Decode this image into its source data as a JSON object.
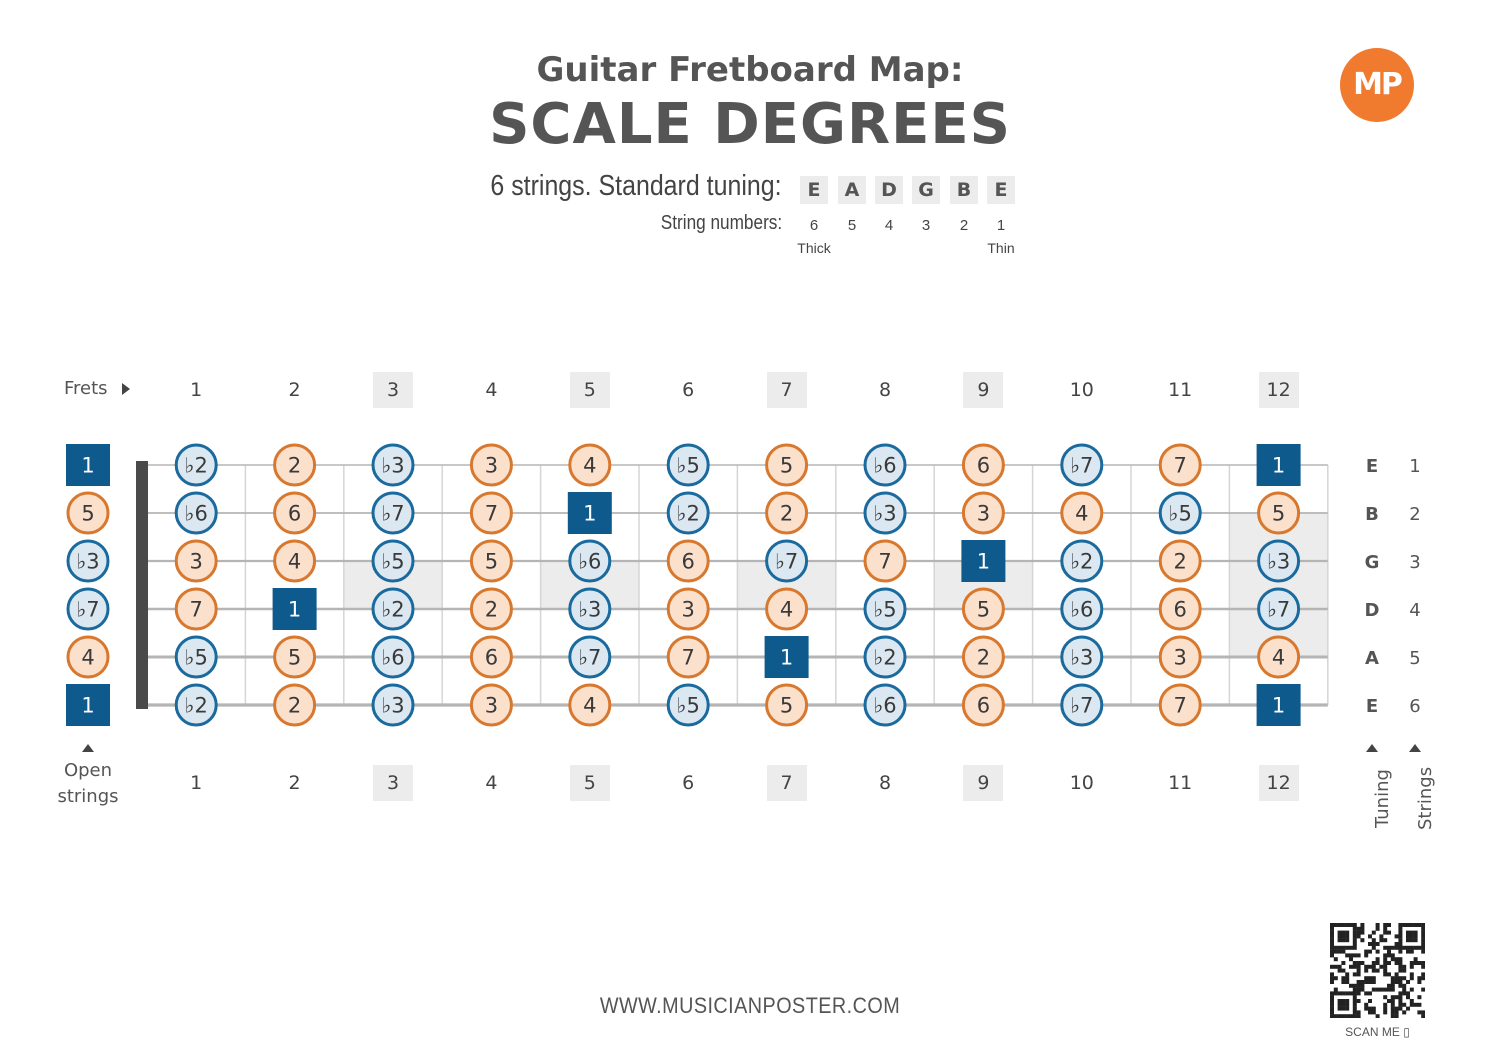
{
  "header": {
    "title_line1": "Guitar Fretboard Map:",
    "title_line2": "SCALE DEGREES",
    "tuning_label": "6 strings. Standard tuning:",
    "tuning": [
      "E",
      "A",
      "D",
      "G",
      "B",
      "E"
    ],
    "string_numbers_label": "String numbers:",
    "string_numbers": [
      "6",
      "5",
      "4",
      "3",
      "2",
      "1"
    ],
    "thick_label": "Thick",
    "thin_label": "Thin",
    "logo_text": "MP"
  },
  "fretboard": {
    "frets_label": "Frets",
    "fret_numbers": [
      "1",
      "2",
      "3",
      "4",
      "5",
      "6",
      "7",
      "8",
      "9",
      "10",
      "11",
      "12"
    ],
    "marker_frets": [
      3,
      5,
      7,
      9,
      12
    ],
    "double_marker_fret": 12,
    "open_strings_label_1": "Open",
    "open_strings_label_2": "strings",
    "tuning_axis_label": "Tuning",
    "strings_axis_label": "Strings",
    "strings": [
      {
        "note": "E",
        "number": "1",
        "open": "1",
        "frets": [
          "b2",
          "2",
          "b3",
          "3",
          "4",
          "b5",
          "5",
          "b6",
          "6",
          "b7",
          "7",
          "1"
        ]
      },
      {
        "note": "B",
        "number": "2",
        "open": "5",
        "frets": [
          "b6",
          "6",
          "b7",
          "7",
          "1",
          "b2",
          "2",
          "b3",
          "3",
          "4",
          "b5",
          "5"
        ]
      },
      {
        "note": "G",
        "number": "3",
        "open": "b3",
        "frets": [
          "3",
          "4",
          "b5",
          "5",
          "b6",
          "6",
          "b7",
          "7",
          "1",
          "b2",
          "2",
          "b3"
        ]
      },
      {
        "note": "D",
        "number": "4",
        "open": "b7",
        "frets": [
          "7",
          "1",
          "b2",
          "2",
          "b3",
          "3",
          "4",
          "b5",
          "5",
          "b6",
          "6",
          "b7"
        ]
      },
      {
        "note": "A",
        "number": "5",
        "open": "4",
        "frets": [
          "b5",
          "5",
          "b6",
          "6",
          "b7",
          "7",
          "1",
          "b2",
          "2",
          "b3",
          "3",
          "4"
        ]
      },
      {
        "note": "E",
        "number": "6",
        "open": "1",
        "frets": [
          "b2",
          "2",
          "b3",
          "3",
          "4",
          "b5",
          "5",
          "b6",
          "6",
          "b7",
          "7",
          "1"
        ]
      }
    ],
    "colors": {
      "root_fill": "#0f5a8c",
      "flat_fill": "#dbe8f2",
      "flat_stroke": "#1a6a9e",
      "natural_fill": "#fbe0cc",
      "natural_stroke": "#d8782e",
      "string_line": "#b5b5b5",
      "fret_line": "#d5d5d5",
      "nut": "#4a4a4a",
      "marker_bg": "#ececec"
    }
  },
  "footer": {
    "website": "WWW.MUSICIANPOSTER.COM",
    "scan_label": "SCAN ME"
  }
}
